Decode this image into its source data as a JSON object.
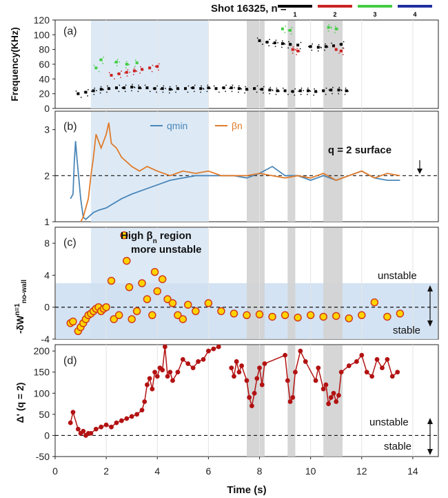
{
  "chart_data": [
    {
      "panel": "(a)",
      "type": "scatter",
      "ylabel": "Frequency(KHz)",
      "ylim": [
        0,
        120
      ],
      "yticks": [
        0,
        20,
        40,
        60,
        80,
        100,
        120
      ],
      "xlim": [
        0,
        15
      ],
      "legend_title": "Shot 16325, n =",
      "legend": [
        {
          "label": "1",
          "color": "#000000"
        },
        {
          "label": "2",
          "color": "#cc2222"
        },
        {
          "label": "3",
          "color": "#44cc44"
        },
        {
          "label": "4",
          "color": "#1f2fa0"
        }
      ],
      "series": [
        {
          "name": "n=1 band",
          "color": "#000000",
          "x": [
            0.9,
            1.2,
            1.5,
            1.8,
            2.1,
            2.4,
            2.7,
            3.0,
            3.3,
            3.6,
            3.9,
            4.2,
            4.5,
            4.8,
            5.1,
            5.4,
            5.7,
            6.0,
            6.3,
            6.6,
            6.9,
            7.2,
            7.5,
            7.8,
            8.1,
            8.4,
            8.7,
            9.0,
            9.3,
            9.6,
            9.9,
            10.2,
            10.5,
            10.8,
            11.1,
            11.4
          ],
          "y": [
            20,
            22,
            24,
            26,
            27,
            28,
            28,
            29,
            28,
            28,
            27,
            27,
            26,
            27,
            27,
            28,
            27,
            28,
            27,
            28,
            28,
            27,
            26,
            27,
            26,
            25,
            24,
            24,
            23,
            24,
            24,
            23,
            24,
            25,
            25,
            24
          ]
        },
        {
          "name": "n=1 high",
          "color": "#000000",
          "x": [
            8.0,
            8.3,
            8.6,
            8.9,
            9.2,
            9.5,
            10.0,
            10.3,
            10.6,
            10.9,
            11.2
          ],
          "y": [
            92,
            90,
            89,
            88,
            87,
            86,
            84,
            83,
            84,
            85,
            87
          ]
        },
        {
          "name": "n=2",
          "color": "#cc2222",
          "x": [
            2.2,
            2.5,
            2.8,
            3.1,
            3.4,
            3.7,
            4.0,
            9.3,
            9.5,
            11.0,
            11.2
          ],
          "y": [
            45,
            47,
            49,
            51,
            53,
            55,
            57,
            80,
            78,
            80,
            78
          ]
        },
        {
          "name": "n=3",
          "color": "#44cc44",
          "x": [
            1.6,
            1.8,
            2.4,
            2.8,
            3.2,
            8.9,
            9.2,
            10.7,
            11.0
          ],
          "y": [
            55,
            66,
            63,
            60,
            62,
            108,
            106,
            110,
            108
          ]
        }
      ]
    },
    {
      "panel": "(b)",
      "type": "line",
      "ylim": [
        1,
        3.4
      ],
      "yticks": [
        1,
        2,
        3
      ],
      "xlim": [
        0,
        15
      ],
      "reference_line": 2,
      "reference_label": "q = 2 surface",
      "series": [
        {
          "name": "qmin",
          "color": "#4a86b8",
          "x": [
            0.6,
            0.7,
            0.75,
            0.8,
            0.85,
            0.9,
            1.0,
            1.1,
            1.2,
            1.3,
            1.5,
            1.7,
            2.0,
            2.3,
            2.6,
            3.0,
            3.5,
            4.0,
            4.5,
            5.0,
            5.5,
            6.0,
            6.5,
            7.0,
            7.5,
            8.0,
            8.5,
            9.0,
            9.5,
            10.0,
            10.5,
            11.0,
            11.5,
            12.0,
            12.5,
            13.0,
            13.5
          ],
          "y": [
            1.5,
            1.6,
            2.3,
            2.75,
            2.4,
            2.1,
            1.5,
            1.1,
            1.05,
            1.1,
            1.2,
            1.25,
            1.3,
            1.4,
            1.5,
            1.6,
            1.7,
            1.8,
            1.9,
            1.95,
            2.0,
            2.0,
            2.0,
            2.0,
            1.95,
            2.05,
            2.2,
            2.0,
            2.0,
            1.9,
            2.0,
            1.9,
            2.0,
            2.1,
            1.95,
            1.9,
            1.9
          ]
        },
        {
          "name": "βn",
          "color": "#e07b2a",
          "x": [
            1.0,
            1.1,
            1.2,
            1.3,
            1.4,
            1.5,
            1.6,
            1.8,
            2.0,
            2.1,
            2.2,
            2.4,
            2.6,
            2.8,
            3.0,
            3.3,
            3.6,
            4.0,
            4.5,
            5.0,
            5.5,
            6.0,
            6.5,
            7.0,
            7.5,
            8.0,
            8.5,
            9.0,
            9.5,
            10.0,
            10.5,
            11.0,
            11.5,
            12.0,
            12.5,
            13.0,
            13.5
          ],
          "y": [
            1.0,
            1.1,
            1.3,
            1.5,
            2.0,
            2.4,
            2.9,
            2.6,
            2.9,
            3.15,
            2.7,
            2.6,
            2.4,
            2.3,
            2.2,
            2.1,
            2.2,
            2.1,
            2.0,
            2.1,
            2.05,
            2.1,
            2.0,
            2.0,
            2.0,
            2.05,
            2.0,
            1.95,
            2.0,
            1.95,
            2.05,
            1.9,
            2.0,
            2.1,
            1.95,
            2.05,
            2.0
          ]
        }
      ]
    },
    {
      "panel": "(c)",
      "type": "scatter",
      "ylabel_main": "-δW",
      "ylabel_sup": "n=1",
      "ylabel_sub": "no-wall",
      "ylim": [
        -4,
        10
      ],
      "yticks": [
        -4,
        0,
        4,
        8
      ],
      "xlim": [
        0,
        15
      ],
      "reference_line": 0,
      "series": [
        {
          "name": "points",
          "color": "#ffd400",
          "x": [
            0.6,
            0.7,
            0.9,
            1.0,
            1.1,
            1.2,
            1.3,
            1.4,
            1.5,
            1.6,
            1.7,
            1.8,
            1.9,
            2.0,
            2.2,
            2.3,
            2.5,
            2.7,
            2.8,
            2.9,
            3.0,
            3.2,
            3.4,
            3.6,
            3.8,
            3.9,
            4.0,
            4.2,
            4.4,
            4.6,
            4.8,
            5.0,
            5.2,
            5.5,
            6.0,
            6.5,
            7.0,
            7.5,
            8.0,
            8.5,
            9.0,
            9.5,
            10.0,
            10.5,
            11.0,
            11.5,
            12.0,
            12.5,
            13.0,
            13.5
          ],
          "y": [
            -2.0,
            -1.8,
            -3.0,
            -2.5,
            -2.0,
            -1.5,
            -1.0,
            -0.8,
            -0.5,
            -0.2,
            0.0,
            -0.5,
            -0.2,
            0.0,
            3.3,
            -1.5,
            -1.0,
            9.0,
            5.8,
            2.5,
            -1.5,
            -0.5,
            3.0,
            1.0,
            -1.0,
            4.4,
            2.0,
            3.5,
            1.0,
            0.5,
            -1.0,
            -1.5,
            0.3,
            -0.5,
            0.5,
            -0.5,
            -0.8,
            -1.0,
            -0.9,
            -1.2,
            -1.0,
            -1.3,
            -1.0,
            -1.2,
            -1.1,
            -1.4,
            -1.0,
            0.6,
            -1.2,
            -0.8
          ]
        }
      ],
      "annotations": [
        "High βn region",
        "more unstable"
      ],
      "upper_label": "unstable",
      "lower_label": "stable"
    },
    {
      "panel": "(d)",
      "type": "line",
      "ylabel": "Δ' (q = 2)",
      "xlabel": "Time (s)",
      "ylim": [
        -50,
        215
      ],
      "yticks": [
        -50,
        0,
        50,
        100,
        150,
        200
      ],
      "xlim": [
        0,
        15
      ],
      "xticks": [
        0,
        2,
        4,
        6,
        8,
        10,
        12,
        14
      ],
      "reference_line": 0,
      "series": [
        {
          "name": "Δ'",
          "color": "#b31212",
          "x": [
            0.6,
            0.7,
            0.9,
            1.0,
            1.1,
            1.2,
            1.3,
            1.4,
            1.6,
            1.8,
            2.0,
            2.2,
            2.4,
            2.6,
            2.8,
            3.0,
            3.2,
            3.4,
            3.5,
            3.6,
            3.7,
            3.8,
            3.9,
            4.0,
            4.1,
            4.2,
            4.3,
            4.4,
            4.5,
            4.6,
            4.8,
            5.0,
            5.2,
            5.4,
            5.6,
            5.8,
            6.0,
            6.2,
            6.4
          ],
          "y": [
            30,
            55,
            15,
            5,
            10,
            0,
            5,
            5,
            15,
            20,
            25,
            20,
            30,
            35,
            40,
            45,
            50,
            60,
            80,
            120,
            135,
            110,
            150,
            140,
            160,
            155,
            210,
            140,
            150,
            130,
            150,
            180,
            170,
            160,
            175,
            180,
            200,
            205,
            210
          ]
        },
        {
          "name": "Δ' late",
          "color": "#b31212",
          "x": [
            6.9,
            7.0,
            7.1,
            7.2,
            7.3,
            7.5,
            7.6,
            7.7,
            7.8,
            7.9,
            8.0,
            8.1,
            8.2,
            9.0,
            9.1,
            9.2,
            9.3,
            9.4,
            9.6,
            9.8,
            10.2,
            10.3,
            10.5,
            10.6,
            10.7,
            10.8,
            10.9,
            11.0,
            11.1,
            11.2,
            11.5,
            11.8,
            12.0,
            12.2,
            12.4,
            12.6,
            12.8,
            13.0,
            13.2,
            13.4
          ],
          "y": [
            160,
            140,
            175,
            150,
            165,
            130,
            90,
            70,
            100,
            135,
            160,
            120,
            170,
            190,
            130,
            80,
            90,
            150,
            200,
            175,
            130,
            160,
            110,
            120,
            75,
            90,
            100,
            80,
            95,
            150,
            165,
            175,
            190,
            150,
            140,
            180,
            160,
            180,
            140,
            150
          ]
        }
      ],
      "upper_label": "unstable",
      "lower_label": "stable"
    }
  ],
  "shaded_ranges": [
    {
      "x0": 7.5,
      "x1": 8.2
    },
    {
      "x0": 9.1,
      "x1": 9.4
    },
    {
      "x0": 10.5,
      "x1": 11.25
    }
  ],
  "high_beta_region": {
    "x0": 1.4,
    "x1": 6.0
  }
}
